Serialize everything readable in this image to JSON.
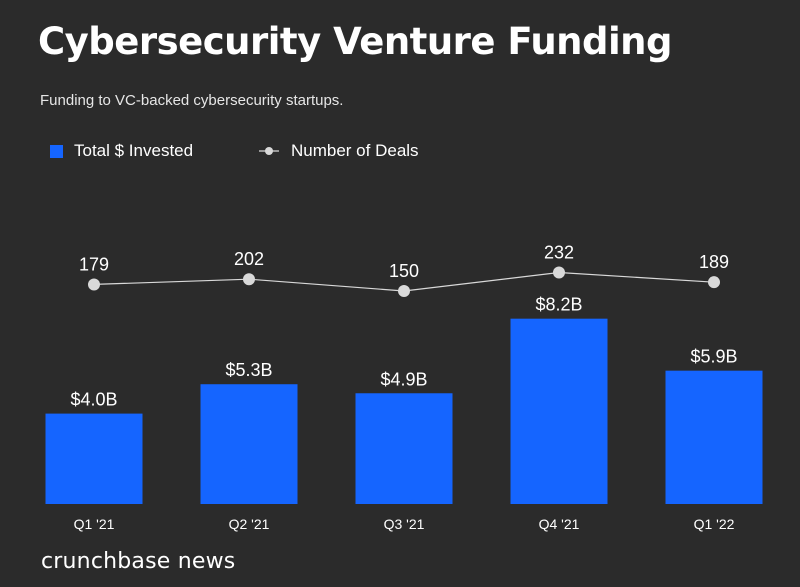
{
  "header": {
    "title": "Cybersecurity Venture Funding",
    "subtitle": "Funding to VC-backed cybersecurity startups."
  },
  "legend": {
    "bar_label": "Total $ Invested",
    "line_label": "Number of Deals"
  },
  "footer": {
    "brand": "crunchbase news"
  },
  "chart_data": {
    "type": "bar",
    "title": "Cybersecurity Venture Funding",
    "subtitle": "Funding to VC-backed cybersecurity startups.",
    "categories": [
      "Q1 '21",
      "Q2 '21",
      "Q3 '21",
      "Q4 '21",
      "Q1 '22"
    ],
    "series": [
      {
        "name": "Total $ Invested",
        "type": "bar",
        "values": [
          4.0,
          5.3,
          4.9,
          8.2,
          5.9
        ],
        "labels": [
          "$4.0B",
          "$5.3B",
          "$4.9B",
          "$8.2B",
          "$5.9B"
        ],
        "unit": "B USD"
      },
      {
        "name": "Number of Deals",
        "type": "line",
        "values": [
          179,
          202,
          150,
          232,
          189
        ],
        "labels": [
          "179",
          "202",
          "150",
          "232",
          "189"
        ]
      }
    ],
    "xlabel": "",
    "ylabel": "",
    "legend_position": "top-left",
    "grid": false,
    "colors": {
      "bar": "#1565ff",
      "line": "#d9d9d9",
      "marker": "#d9d9d9",
      "text": "#ffffff",
      "background": "#2b2b2b"
    }
  }
}
